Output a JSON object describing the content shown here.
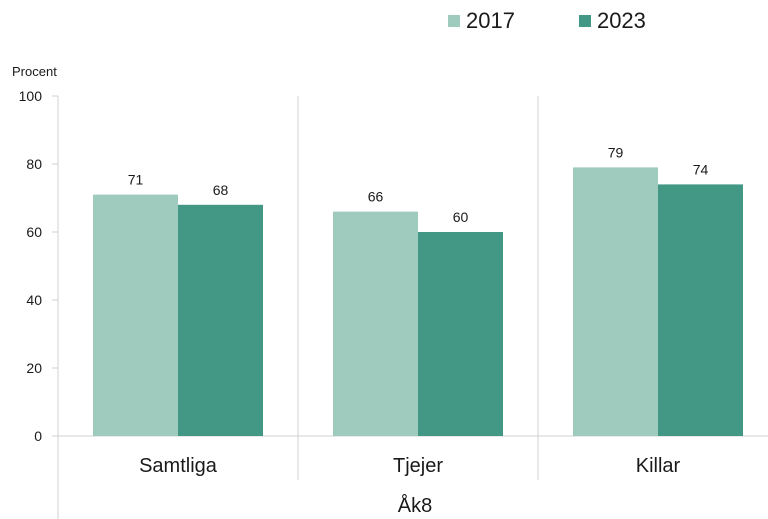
{
  "chart_data": {
    "type": "bar",
    "ylabel": "Procent",
    "xlabel": "Åk8",
    "ylim": [
      0,
      100
    ],
    "yticks": [
      0,
      20,
      40,
      60,
      80,
      100
    ],
    "categories": [
      "Samtliga",
      "Tjejer",
      "Killar"
    ],
    "series": [
      {
        "name": "2017",
        "color": "#9fcbbf",
        "values": [
          71,
          66,
          79
        ]
      },
      {
        "name": "2023",
        "color": "#429884",
        "values": [
          68,
          60,
          74
        ]
      }
    ],
    "legend_position": "top-right",
    "grid": false
  }
}
